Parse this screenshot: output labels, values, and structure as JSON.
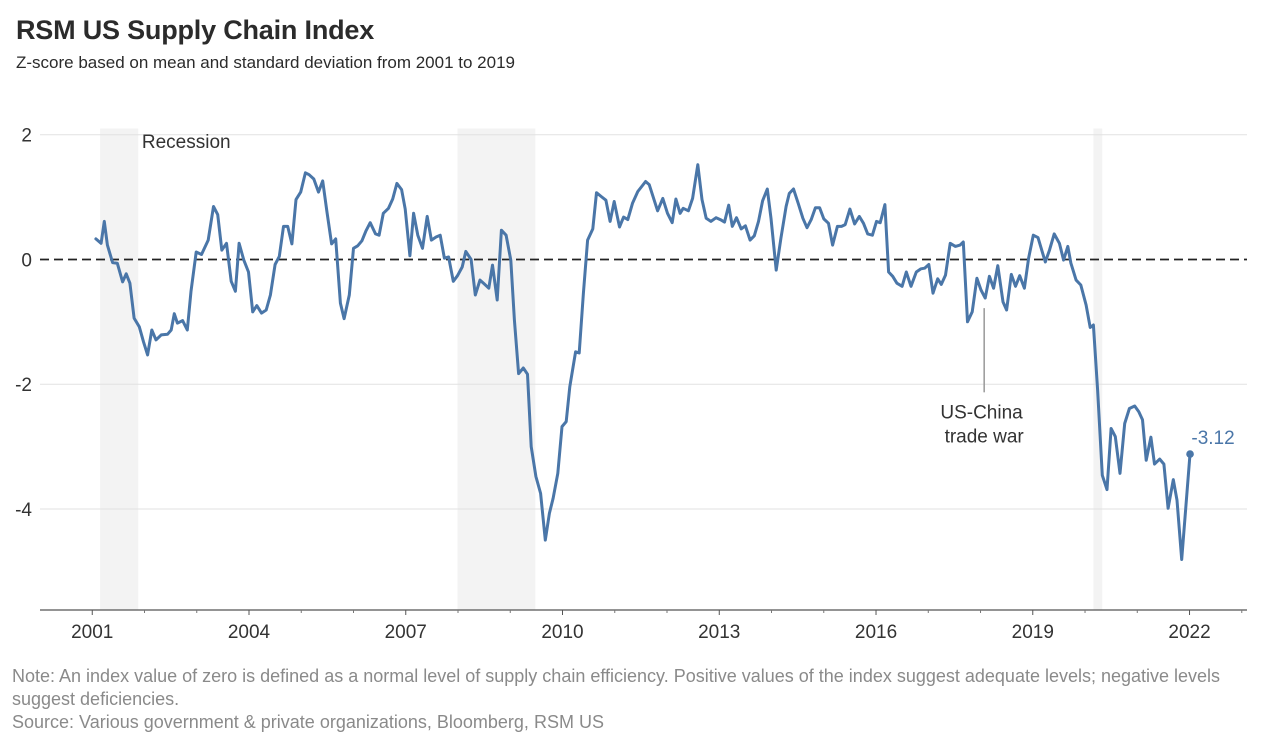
{
  "header": {
    "title": "RSM US Supply Chain Index",
    "subtitle": "Z-score based on mean and standard deviation from 2001 to 2019"
  },
  "footer": {
    "note": "Note: An index value of zero is defined as a normal level of supply chain efficiency. Positive values of the index suggest adequate levels; negative levels suggest deficiencies.",
    "source": "Source: Various government & private organizations, Bloomberg, RSM US"
  },
  "colors": {
    "line": "#4a76a8",
    "recession": "#f3f3f3",
    "grid": "#e2e2e2",
    "zero_line": "#222222",
    "annotation_line": "#999999"
  },
  "chart_data": {
    "type": "line",
    "title": "RSM US Supply Chain Index",
    "subtitle": "Z-score based on mean and standard deviation from 2001 to 2019",
    "xlabel": "",
    "ylabel": "",
    "xlim": [
      2000.0,
      2023.1
    ],
    "ylim": [
      -5.62,
      2.1
    ],
    "grid": true,
    "legend": "none",
    "y_ticks": [
      2,
      0,
      -2,
      -4
    ],
    "y_tick_labels": [
      "2",
      "0",
      "-2",
      "-4"
    ],
    "x_ticks": [
      2001,
      2004,
      2007,
      2010,
      2013,
      2016,
      2019,
      2022
    ],
    "x_tick_labels": [
      "2001",
      "2004",
      "2007",
      "2010",
      "2013",
      "2016",
      "2019",
      "2022"
    ],
    "x_minor_ticks": [
      2002,
      2003,
      2005,
      2006,
      2008,
      2009,
      2011,
      2012,
      2014,
      2015,
      2017,
      2018,
      2020,
      2021,
      2023
    ],
    "reference_line": {
      "y": 0,
      "style": "dashed"
    },
    "recessions": [
      {
        "start": 2001.15,
        "end": 2001.88
      },
      {
        "start": 2007.99,
        "end": 2009.48
      },
      {
        "start": 2020.16,
        "end": 2020.33
      }
    ],
    "annotations": [
      {
        "text": "Recession",
        "x": 2001.95,
        "y": 1.88
      },
      {
        "text_lines": [
          "US-China",
          "trade war"
        ],
        "x": 2018.07,
        "y_from": -0.78,
        "y_to": -2.13,
        "label_y": -2.55
      },
      {
        "text": "-3.12",
        "x": 2022.01,
        "y": -3.12,
        "kind": "end-label"
      }
    ],
    "series": [
      {
        "name": "RSM US Supply Chain Index",
        "points": [
          [
            2001.07,
            0.33
          ],
          [
            2001.17,
            0.26
          ],
          [
            2001.23,
            0.61
          ],
          [
            2001.29,
            0.23
          ],
          [
            2001.39,
            -0.05
          ],
          [
            2001.48,
            -0.06
          ],
          [
            2001.58,
            -0.36
          ],
          [
            2001.65,
            -0.23
          ],
          [
            2001.72,
            -0.38
          ],
          [
            2001.8,
            -0.94
          ],
          [
            2001.9,
            -1.08
          ],
          [
            2001.98,
            -1.32
          ],
          [
            2002.06,
            -1.53
          ],
          [
            2002.14,
            -1.13
          ],
          [
            2002.22,
            -1.29
          ],
          [
            2002.32,
            -1.21
          ],
          [
            2002.44,
            -1.2
          ],
          [
            2002.51,
            -1.13
          ],
          [
            2002.57,
            -0.87
          ],
          [
            2002.63,
            -1.02
          ],
          [
            2002.73,
            -0.98
          ],
          [
            2002.82,
            -1.13
          ],
          [
            2002.89,
            -0.51
          ],
          [
            2002.99,
            0.12
          ],
          [
            2003.09,
            0.08
          ],
          [
            2003.22,
            0.31
          ],
          [
            2003.32,
            0.85
          ],
          [
            2003.4,
            0.72
          ],
          [
            2003.48,
            0.15
          ],
          [
            2003.57,
            0.26
          ],
          [
            2003.66,
            -0.35
          ],
          [
            2003.74,
            -0.51
          ],
          [
            2003.81,
            0.26
          ],
          [
            2003.9,
            -0.01
          ],
          [
            2003.99,
            -0.2
          ],
          [
            2004.07,
            -0.84
          ],
          [
            2004.15,
            -0.74
          ],
          [
            2004.24,
            -0.86
          ],
          [
            2004.33,
            -0.81
          ],
          [
            2004.41,
            -0.57
          ],
          [
            2004.5,
            -0.08
          ],
          [
            2004.58,
            0.05
          ],
          [
            2004.66,
            0.53
          ],
          [
            2004.74,
            0.53
          ],
          [
            2004.82,
            0.25
          ],
          [
            2004.9,
            0.96
          ],
          [
            2004.99,
            1.08
          ],
          [
            2005.08,
            1.39
          ],
          [
            2005.15,
            1.36
          ],
          [
            2005.24,
            1.29
          ],
          [
            2005.33,
            1.08
          ],
          [
            2005.41,
            1.26
          ],
          [
            2005.49,
            0.77
          ],
          [
            2005.58,
            0.25
          ],
          [
            2005.66,
            0.33
          ],
          [
            2005.75,
            -0.7
          ],
          [
            2005.82,
            -0.95
          ],
          [
            2005.92,
            -0.57
          ],
          [
            2006.0,
            0.18
          ],
          [
            2006.08,
            0.22
          ],
          [
            2006.16,
            0.3
          ],
          [
            2006.24,
            0.46
          ],
          [
            2006.32,
            0.59
          ],
          [
            2006.42,
            0.41
          ],
          [
            2006.49,
            0.39
          ],
          [
            2006.57,
            0.74
          ],
          [
            2006.67,
            0.82
          ],
          [
            2006.75,
            0.97
          ],
          [
            2006.83,
            1.22
          ],
          [
            2006.92,
            1.12
          ],
          [
            2006.99,
            0.81
          ],
          [
            2007.08,
            0.06
          ],
          [
            2007.15,
            0.74
          ],
          [
            2007.23,
            0.39
          ],
          [
            2007.32,
            0.18
          ],
          [
            2007.41,
            0.69
          ],
          [
            2007.49,
            0.31
          ],
          [
            2007.58,
            0.36
          ],
          [
            2007.66,
            0.39
          ],
          [
            2007.74,
            0.02
          ],
          [
            2007.82,
            0.04
          ],
          [
            2007.91,
            -0.35
          ],
          [
            2007.99,
            -0.26
          ],
          [
            2008.08,
            -0.12
          ],
          [
            2008.15,
            0.13
          ],
          [
            2008.25,
            0.0
          ],
          [
            2008.33,
            -0.57
          ],
          [
            2008.42,
            -0.33
          ],
          [
            2008.5,
            -0.39
          ],
          [
            2008.59,
            -0.46
          ],
          [
            2008.66,
            -0.09
          ],
          [
            2008.75,
            -0.65
          ],
          [
            2008.83,
            0.47
          ],
          [
            2008.92,
            0.39
          ],
          [
            2009.01,
            -0.01
          ],
          [
            2009.08,
            -0.97
          ],
          [
            2009.16,
            -1.83
          ],
          [
            2009.25,
            -1.74
          ],
          [
            2009.33,
            -1.84
          ],
          [
            2009.4,
            -3.0
          ],
          [
            2009.49,
            -3.48
          ],
          [
            2009.58,
            -3.75
          ],
          [
            2009.67,
            -4.5
          ],
          [
            2009.75,
            -4.07
          ],
          [
            2009.82,
            -3.83
          ],
          [
            2009.91,
            -3.43
          ],
          [
            2009.99,
            -2.68
          ],
          [
            2010.07,
            -2.6
          ],
          [
            2010.14,
            -2.04
          ],
          [
            2010.25,
            -1.48
          ],
          [
            2010.32,
            -1.5
          ],
          [
            2010.4,
            -0.54
          ],
          [
            2010.48,
            0.31
          ],
          [
            2010.58,
            0.49
          ],
          [
            2010.65,
            1.07
          ],
          [
            2010.74,
            1.01
          ],
          [
            2010.83,
            0.95
          ],
          [
            2010.91,
            0.61
          ],
          [
            2010.99,
            0.93
          ],
          [
            2011.09,
            0.52
          ],
          [
            2011.17,
            0.68
          ],
          [
            2011.25,
            0.64
          ],
          [
            2011.34,
            0.9
          ],
          [
            2011.44,
            1.09
          ],
          [
            2011.59,
            1.25
          ],
          [
            2011.66,
            1.2
          ],
          [
            2011.82,
            0.78
          ],
          [
            2011.92,
            0.98
          ],
          [
            2012.01,
            0.74
          ],
          [
            2012.1,
            0.59
          ],
          [
            2012.17,
            0.97
          ],
          [
            2012.25,
            0.74
          ],
          [
            2012.31,
            0.82
          ],
          [
            2012.41,
            0.78
          ],
          [
            2012.49,
            0.98
          ],
          [
            2012.59,
            1.52
          ],
          [
            2012.67,
            0.96
          ],
          [
            2012.75,
            0.66
          ],
          [
            2012.84,
            0.61
          ],
          [
            2012.94,
            0.67
          ],
          [
            2013.02,
            0.64
          ],
          [
            2013.1,
            0.6
          ],
          [
            2013.18,
            0.87
          ],
          [
            2013.25,
            0.53
          ],
          [
            2013.33,
            0.67
          ],
          [
            2013.42,
            0.49
          ],
          [
            2013.5,
            0.54
          ],
          [
            2013.59,
            0.31
          ],
          [
            2013.67,
            0.38
          ],
          [
            2013.75,
            0.61
          ],
          [
            2013.83,
            0.94
          ],
          [
            2013.92,
            1.13
          ],
          [
            2013.99,
            0.66
          ],
          [
            2014.09,
            -0.17
          ],
          [
            2014.18,
            0.34
          ],
          [
            2014.28,
            0.85
          ],
          [
            2014.34,
            1.06
          ],
          [
            2014.42,
            1.13
          ],
          [
            2014.51,
            0.9
          ],
          [
            2014.6,
            0.66
          ],
          [
            2014.68,
            0.51
          ],
          [
            2014.76,
            0.64
          ],
          [
            2014.84,
            0.83
          ],
          [
            2014.92,
            0.83
          ],
          [
            2015.0,
            0.65
          ],
          [
            2015.09,
            0.58
          ],
          [
            2015.17,
            0.23
          ],
          [
            2015.26,
            0.53
          ],
          [
            2015.34,
            0.53
          ],
          [
            2015.41,
            0.56
          ],
          [
            2015.5,
            0.81
          ],
          [
            2015.59,
            0.57
          ],
          [
            2015.68,
            0.69
          ],
          [
            2015.76,
            0.58
          ],
          [
            2015.84,
            0.41
          ],
          [
            2015.93,
            0.39
          ],
          [
            2016.01,
            0.61
          ],
          [
            2016.08,
            0.59
          ],
          [
            2016.17,
            0.88
          ],
          [
            2016.24,
            -0.2
          ],
          [
            2016.32,
            -0.27
          ],
          [
            2016.4,
            -0.38
          ],
          [
            2016.5,
            -0.43
          ],
          [
            2016.58,
            -0.2
          ],
          [
            2016.67,
            -0.43
          ],
          [
            2016.77,
            -0.2
          ],
          [
            2016.86,
            -0.15
          ],
          [
            2016.93,
            -0.14
          ],
          [
            2017.01,
            -0.08
          ],
          [
            2017.09,
            -0.54
          ],
          [
            2017.18,
            -0.31
          ],
          [
            2017.25,
            -0.4
          ],
          [
            2017.33,
            -0.25
          ],
          [
            2017.42,
            0.26
          ],
          [
            2017.52,
            0.21
          ],
          [
            2017.61,
            0.23
          ],
          [
            2017.67,
            0.28
          ],
          [
            2017.75,
            -1.0
          ],
          [
            2017.84,
            -0.84
          ],
          [
            2017.93,
            -0.3
          ],
          [
            2018.01,
            -0.49
          ],
          [
            2018.09,
            -0.62
          ],
          [
            2018.17,
            -0.27
          ],
          [
            2018.25,
            -0.46
          ],
          [
            2018.33,
            -0.1
          ],
          [
            2018.43,
            -0.68
          ],
          [
            2018.5,
            -0.81
          ],
          [
            2018.59,
            -0.24
          ],
          [
            2018.67,
            -0.43
          ],
          [
            2018.75,
            -0.26
          ],
          [
            2018.84,
            -0.46
          ],
          [
            2018.92,
            0.02
          ],
          [
            2019.01,
            0.39
          ],
          [
            2019.1,
            0.35
          ],
          [
            2019.24,
            -0.04
          ],
          [
            2019.32,
            0.15
          ],
          [
            2019.41,
            0.41
          ],
          [
            2019.51,
            0.26
          ],
          [
            2019.59,
            -0.01
          ],
          [
            2019.67,
            0.21
          ],
          [
            2019.73,
            -0.06
          ],
          [
            2019.83,
            -0.33
          ],
          [
            2019.92,
            -0.41
          ],
          [
            2020.02,
            -0.73
          ],
          [
            2020.1,
            -1.09
          ],
          [
            2020.16,
            -1.05
          ],
          [
            2020.24,
            -2.09
          ],
          [
            2020.33,
            -3.46
          ],
          [
            2020.42,
            -3.69
          ],
          [
            2020.5,
            -2.71
          ],
          [
            2020.58,
            -2.84
          ],
          [
            2020.67,
            -3.43
          ],
          [
            2020.76,
            -2.63
          ],
          [
            2020.85,
            -2.39
          ],
          [
            2020.95,
            -2.35
          ],
          [
            2021.03,
            -2.44
          ],
          [
            2021.1,
            -2.57
          ],
          [
            2021.17,
            -3.22
          ],
          [
            2021.26,
            -2.85
          ],
          [
            2021.33,
            -3.28
          ],
          [
            2021.43,
            -3.2
          ],
          [
            2021.51,
            -3.28
          ],
          [
            2021.59,
            -3.99
          ],
          [
            2021.69,
            -3.53
          ],
          [
            2021.76,
            -3.86
          ],
          [
            2021.85,
            -4.81
          ],
          [
            2022.01,
            -3.12
          ]
        ]
      }
    ]
  }
}
